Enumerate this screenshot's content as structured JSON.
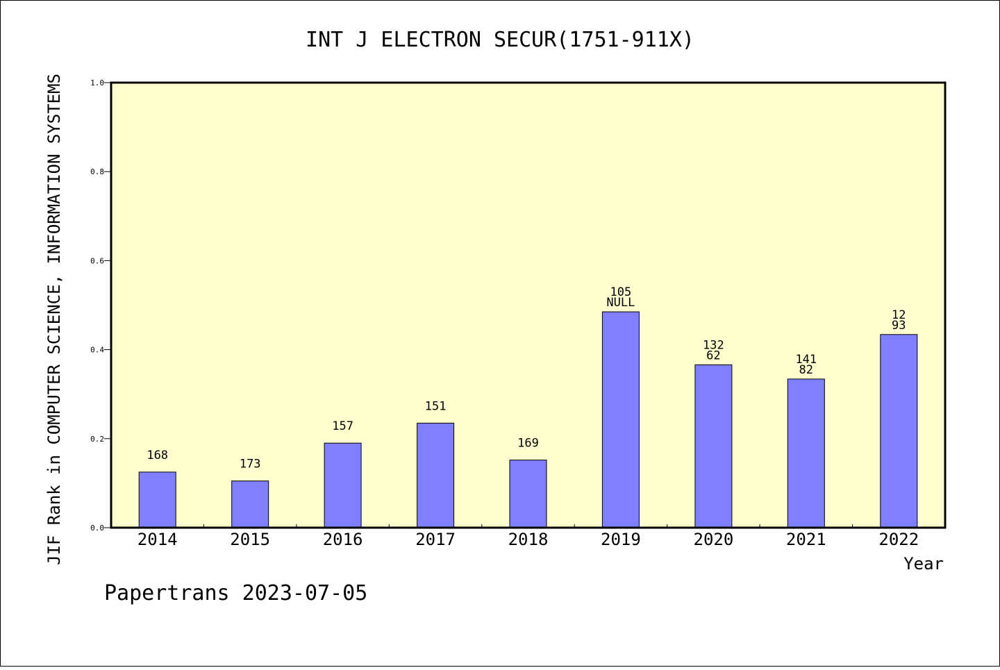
{
  "chart_data": {
    "type": "bar",
    "title": "INT J ELECTRON SECUR(1751-911X)",
    "xlabel": "Year",
    "ylabel": "JIF Rank in COMPUTER SCIENCE, INFORMATION SYSTEMS",
    "ylim": [
      0,
      1.0
    ],
    "yticks": [
      "0.0",
      "0.2",
      "0.4",
      "0.6",
      "0.8",
      "1.0"
    ],
    "categories": [
      "2014",
      "2015",
      "2016",
      "2017",
      "2018",
      "2019",
      "2020",
      "2021",
      "2022"
    ],
    "values": [
      0.125,
      0.105,
      0.19,
      0.235,
      0.152,
      0.485,
      0.366,
      0.334,
      0.434
    ],
    "bar_labels": [
      [
        "168"
      ],
      [
        "173"
      ],
      [
        "157"
      ],
      [
        "151"
      ],
      [
        "169"
      ],
      [
        "105",
        "NULL"
      ],
      [
        "132",
        "62"
      ],
      [
        "141",
        "82"
      ],
      [
        "12",
        "93"
      ]
    ],
    "grid": false,
    "legend": "none",
    "colors": {
      "plot_background": "#ffffd0",
      "bar_fill": "#8080ff",
      "bar_stroke": "#000000"
    }
  },
  "footer": {
    "source_text": "Papertrans 2023-07-05"
  }
}
